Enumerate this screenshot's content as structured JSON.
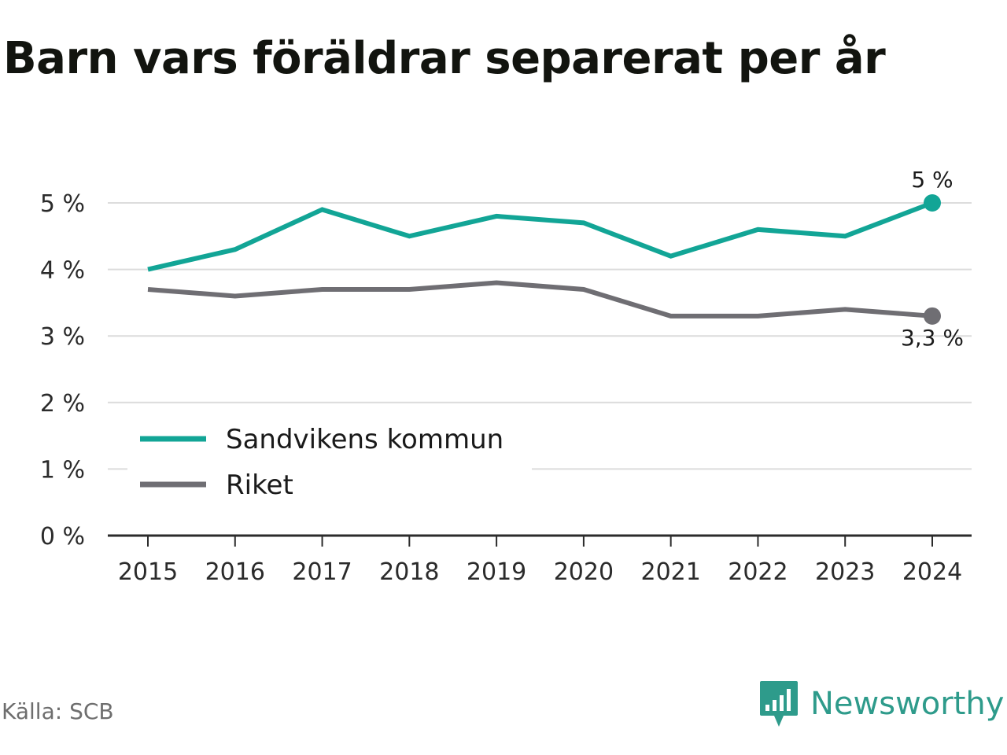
{
  "title": "Barn vars föräldrar separerat per år",
  "source": "Källa: SCB",
  "brand": {
    "name": "Newsworthy",
    "icon": "newsworthy-logo-icon",
    "color": "#2e9b8b"
  },
  "colors": {
    "grid": "#dcdcdc",
    "axis": "#2b2b2b",
    "text": "#2b2b2b"
  },
  "chart_data": {
    "type": "line",
    "x": [
      "2015",
      "2016",
      "2017",
      "2018",
      "2019",
      "2020",
      "2021",
      "2022",
      "2023",
      "2024"
    ],
    "y_ticks": [
      "0 %",
      "1 %",
      "2 %",
      "3 %",
      "4 %",
      "5 %"
    ],
    "ylim": [
      0,
      5
    ],
    "grid": true,
    "legend_position": "bottom-left",
    "series": [
      {
        "name": "Sandvikens kommun",
        "color": "#12a596",
        "values": [
          4.0,
          4.3,
          4.9,
          4.5,
          4.8,
          4.7,
          4.2,
          4.6,
          4.5,
          5.0
        ],
        "end_label": "5 %"
      },
      {
        "name": "Riket",
        "color": "#6f6e73",
        "values": [
          3.7,
          3.6,
          3.7,
          3.7,
          3.8,
          3.7,
          3.3,
          3.3,
          3.4,
          3.3
        ],
        "end_label": "3,3 %"
      }
    ]
  }
}
